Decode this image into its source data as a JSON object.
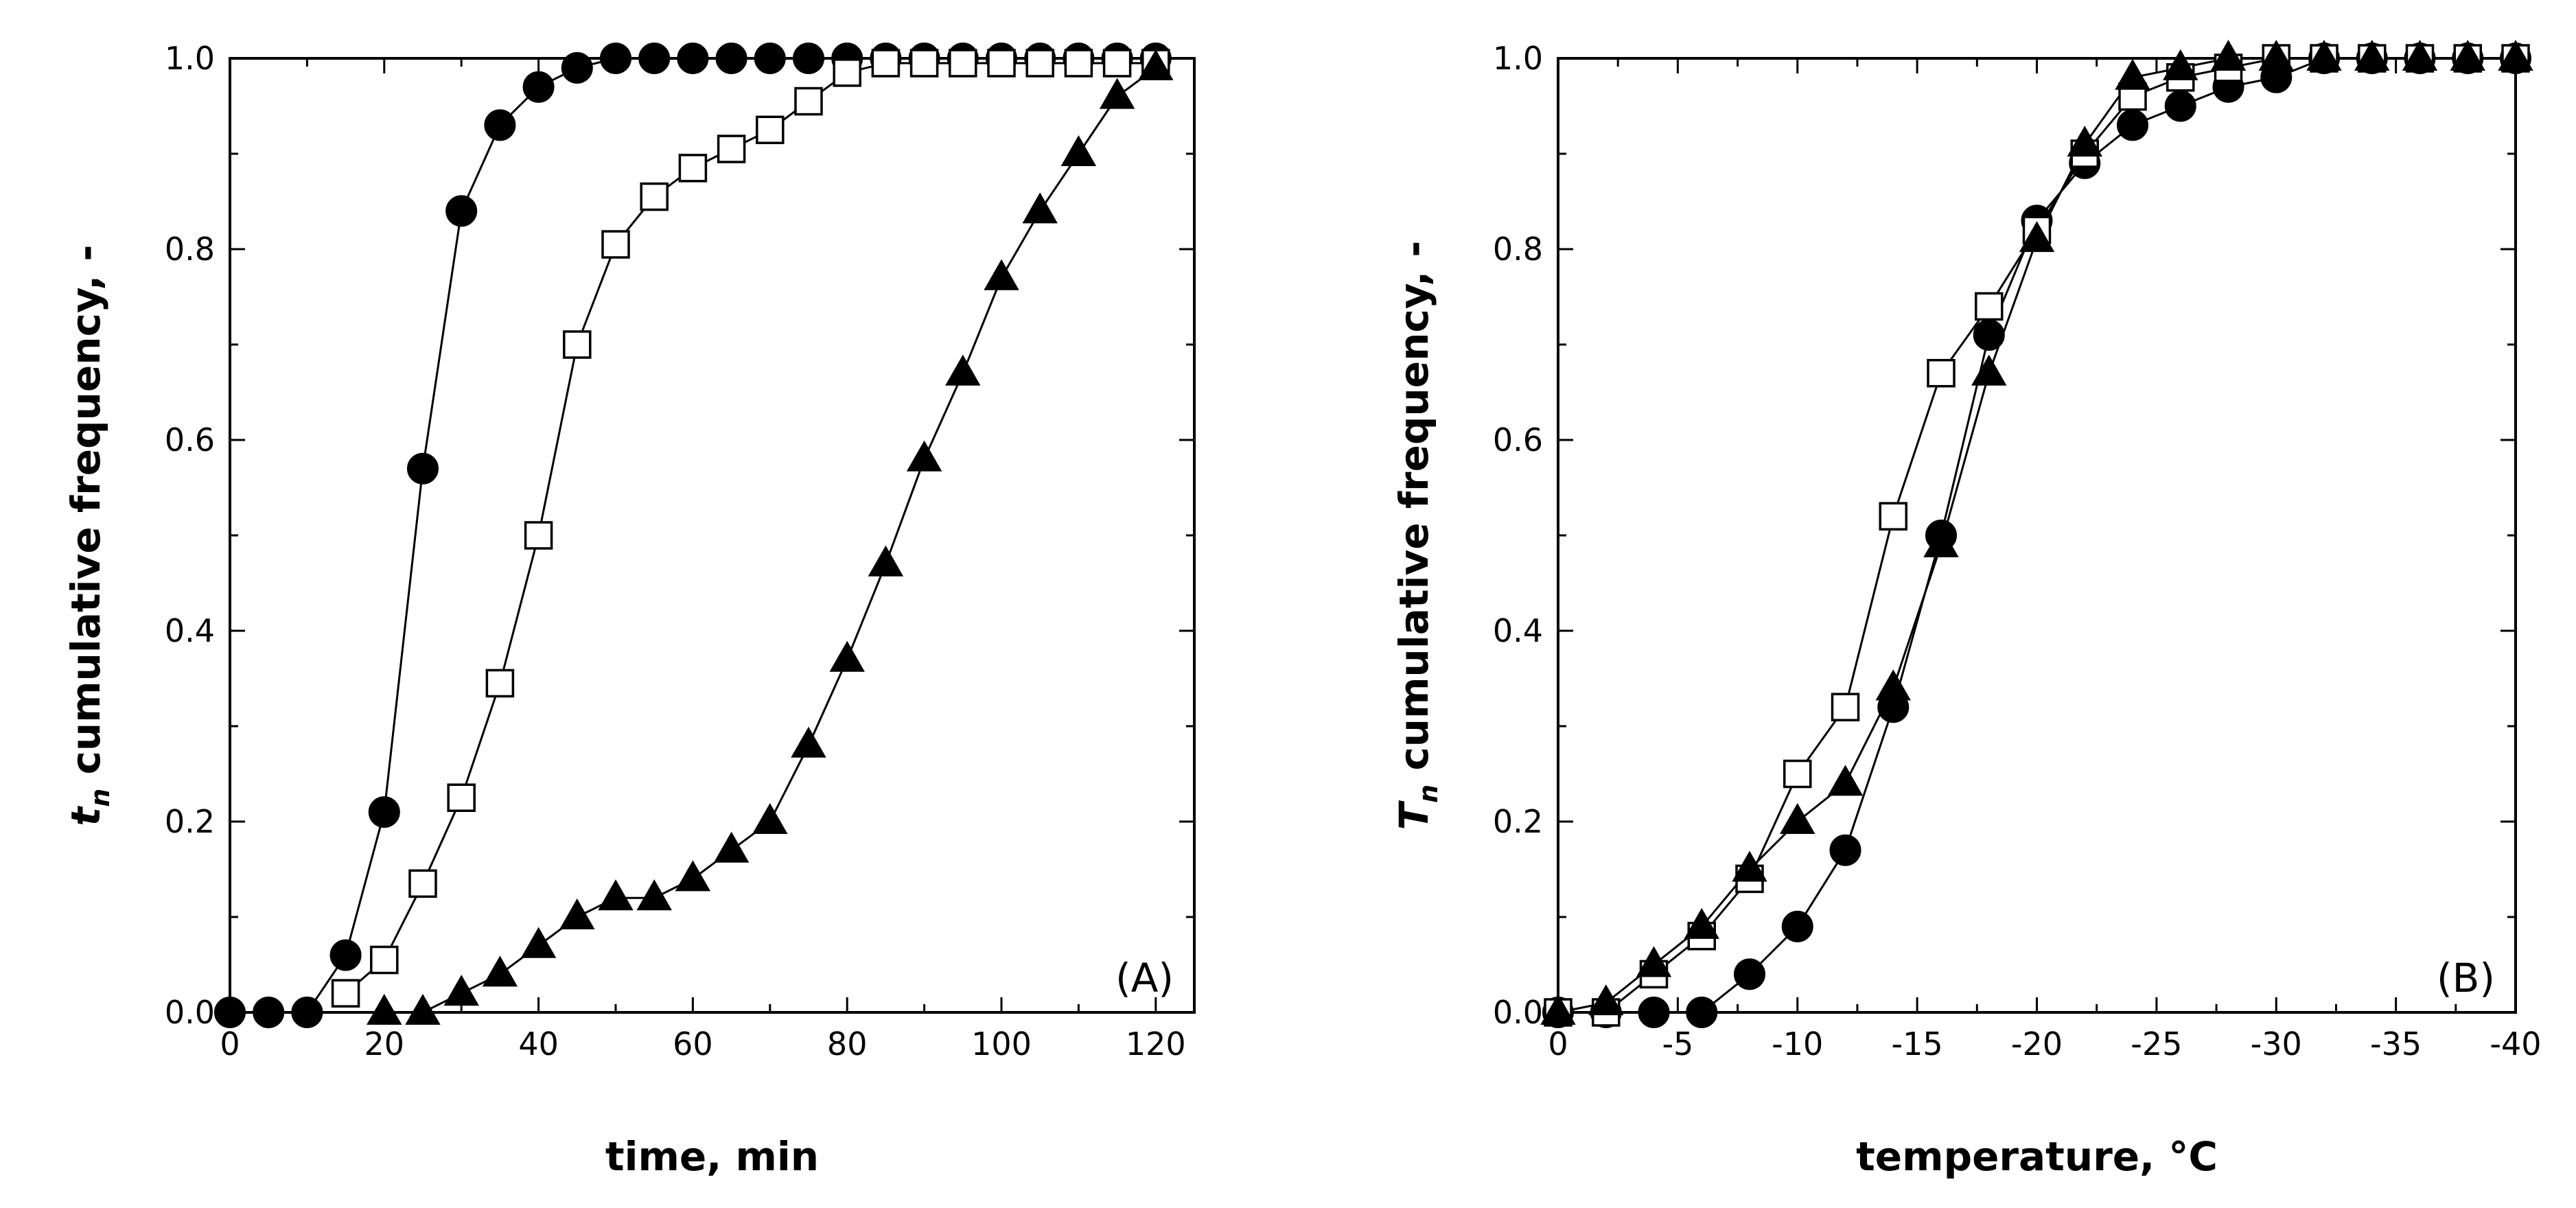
{
  "chart_data": [
    {
      "type": "line",
      "panel_label": "(A)",
      "xlabel": "time, min",
      "ylabel": {
        "symbol": "t",
        "subscript": "n",
        "text": " cumulative frequency, -"
      },
      "xlim": [
        0,
        125
      ],
      "ylim": [
        0,
        1.0
      ],
      "x_major_ticks": [
        0,
        20,
        40,
        60,
        80,
        100,
        120
      ],
      "x_minor_ticks": [
        10,
        30,
        50,
        70,
        90,
        110
      ],
      "x_tick_labels": [
        "0",
        "20",
        "40",
        "60",
        "80",
        "100",
        "120"
      ],
      "y_major_ticks": [
        0,
        0.2,
        0.4,
        0.6,
        0.8,
        1.0
      ],
      "y_minor_ticks": [
        0.1,
        0.3,
        0.5,
        0.7,
        0.9
      ],
      "y_tick_labels": [
        "0.0",
        "0.2",
        "0.4",
        "0.6",
        "0.8",
        "1.0"
      ],
      "series": [
        {
          "name": "filled circles",
          "marker": "circle-filled",
          "x": [
            0,
            5,
            10,
            15,
            20,
            25,
            30,
            35,
            40,
            45,
            50,
            55,
            60,
            65,
            70,
            75,
            80,
            85,
            90,
            95,
            100,
            105,
            110,
            115,
            120
          ],
          "y": [
            0.0,
            0.0,
            0.0,
            0.06,
            0.21,
            0.57,
            0.84,
            0.93,
            0.97,
            0.99,
            1.0,
            1.0,
            1.0,
            1.0,
            1.0,
            1.0,
            1.0,
            1.0,
            1.0,
            1.0,
            1.0,
            1.0,
            1.0,
            1.0,
            1.0
          ]
        },
        {
          "name": "open squares",
          "marker": "square-open",
          "x": [
            15,
            20,
            25,
            30,
            35,
            40,
            45,
            50,
            55,
            60,
            65,
            70,
            75,
            80,
            85,
            90,
            95,
            100,
            105,
            110,
            115,
            120
          ],
          "y": [
            0.02,
            0.055,
            0.135,
            0.225,
            0.345,
            0.5,
            0.7,
            0.805,
            0.855,
            0.885,
            0.905,
            0.925,
            0.955,
            0.985,
            0.995,
            0.995,
            0.995,
            0.995,
            0.995,
            0.995,
            0.995,
            0.995
          ]
        },
        {
          "name": "filled triangles",
          "marker": "triangle-filled",
          "x": [
            20,
            25,
            30,
            35,
            40,
            45,
            50,
            55,
            60,
            65,
            70,
            75,
            80,
            85,
            90,
            95,
            100,
            105,
            110,
            115,
            120
          ],
          "y": [
            0.0,
            0.0,
            0.02,
            0.04,
            0.07,
            0.1,
            0.12,
            0.12,
            0.14,
            0.17,
            0.2,
            0.28,
            0.37,
            0.47,
            0.58,
            0.67,
            0.77,
            0.84,
            0.9,
            0.96,
            0.99
          ]
        }
      ]
    },
    {
      "type": "line",
      "panel_label": "(B)",
      "xlabel": "temperature, °C",
      "ylabel": {
        "symbol": "T",
        "subscript": "n",
        "text": " cumulative frequency, -"
      },
      "xlim": [
        0,
        -40
      ],
      "ylim": [
        0,
        1.0
      ],
      "x_major_ticks": [
        0,
        -5,
        -10,
        -15,
        -20,
        -25,
        -30,
        -35,
        -40
      ],
      "x_minor_ticks": [
        -2.5,
        -7.5,
        -12.5,
        -17.5,
        -22.5,
        -27.5,
        -32.5,
        -37.5
      ],
      "x_tick_labels": [
        "0",
        "-5",
        "-10",
        "-15",
        "-20",
        "-25",
        "-30",
        "-35",
        "-40"
      ],
      "y_major_ticks": [
        0,
        0.2,
        0.4,
        0.6,
        0.8,
        1.0
      ],
      "y_minor_ticks": [
        0.1,
        0.3,
        0.5,
        0.7,
        0.9
      ],
      "y_tick_labels": [
        "0.0",
        "0.2",
        "0.4",
        "0.6",
        "0.8",
        "1.0"
      ],
      "series": [
        {
          "name": "filled circles",
          "marker": "circle-filled",
          "x": [
            0,
            -2,
            -4,
            -6,
            -8,
            -10,
            -12,
            -14,
            -16,
            -18,
            -20,
            -22,
            -24,
            -26,
            -28,
            -30,
            -32,
            -34,
            -36,
            -38,
            -40
          ],
          "y": [
            0.0,
            0.0,
            0.0,
            0.0,
            0.04,
            0.09,
            0.17,
            0.32,
            0.5,
            0.71,
            0.83,
            0.89,
            0.93,
            0.95,
            0.97,
            0.98,
            1.0,
            1.0,
            1.0,
            1.0,
            1.0
          ]
        },
        {
          "name": "open squares",
          "marker": "square-open",
          "x": [
            0,
            -2,
            -4,
            -6,
            -8,
            -10,
            -12,
            -14,
            -16,
            -18,
            -20,
            -22,
            -24,
            -26,
            -28,
            -30,
            -32,
            -34,
            -36,
            -38,
            -40
          ],
          "y": [
            0.0,
            0.0,
            0.04,
            0.08,
            0.14,
            0.25,
            0.32,
            0.52,
            0.67,
            0.74,
            0.82,
            0.9,
            0.96,
            0.98,
            0.99,
            1.0,
            1.0,
            1.0,
            1.0,
            1.0,
            1.0
          ]
        },
        {
          "name": "filled triangles",
          "marker": "triangle-filled",
          "x": [
            0,
            -2,
            -4,
            -6,
            -8,
            -10,
            -12,
            -14,
            -16,
            -18,
            -20,
            -22,
            -24,
            -26,
            -28,
            -30,
            -32,
            -34,
            -36,
            -38,
            -40
          ],
          "y": [
            0.0,
            0.01,
            0.05,
            0.09,
            0.15,
            0.2,
            0.24,
            0.34,
            0.49,
            0.67,
            0.81,
            0.91,
            0.98,
            0.99,
            1.0,
            1.0,
            1.0,
            1.0,
            1.0,
            1.0,
            1.0
          ]
        }
      ]
    }
  ]
}
